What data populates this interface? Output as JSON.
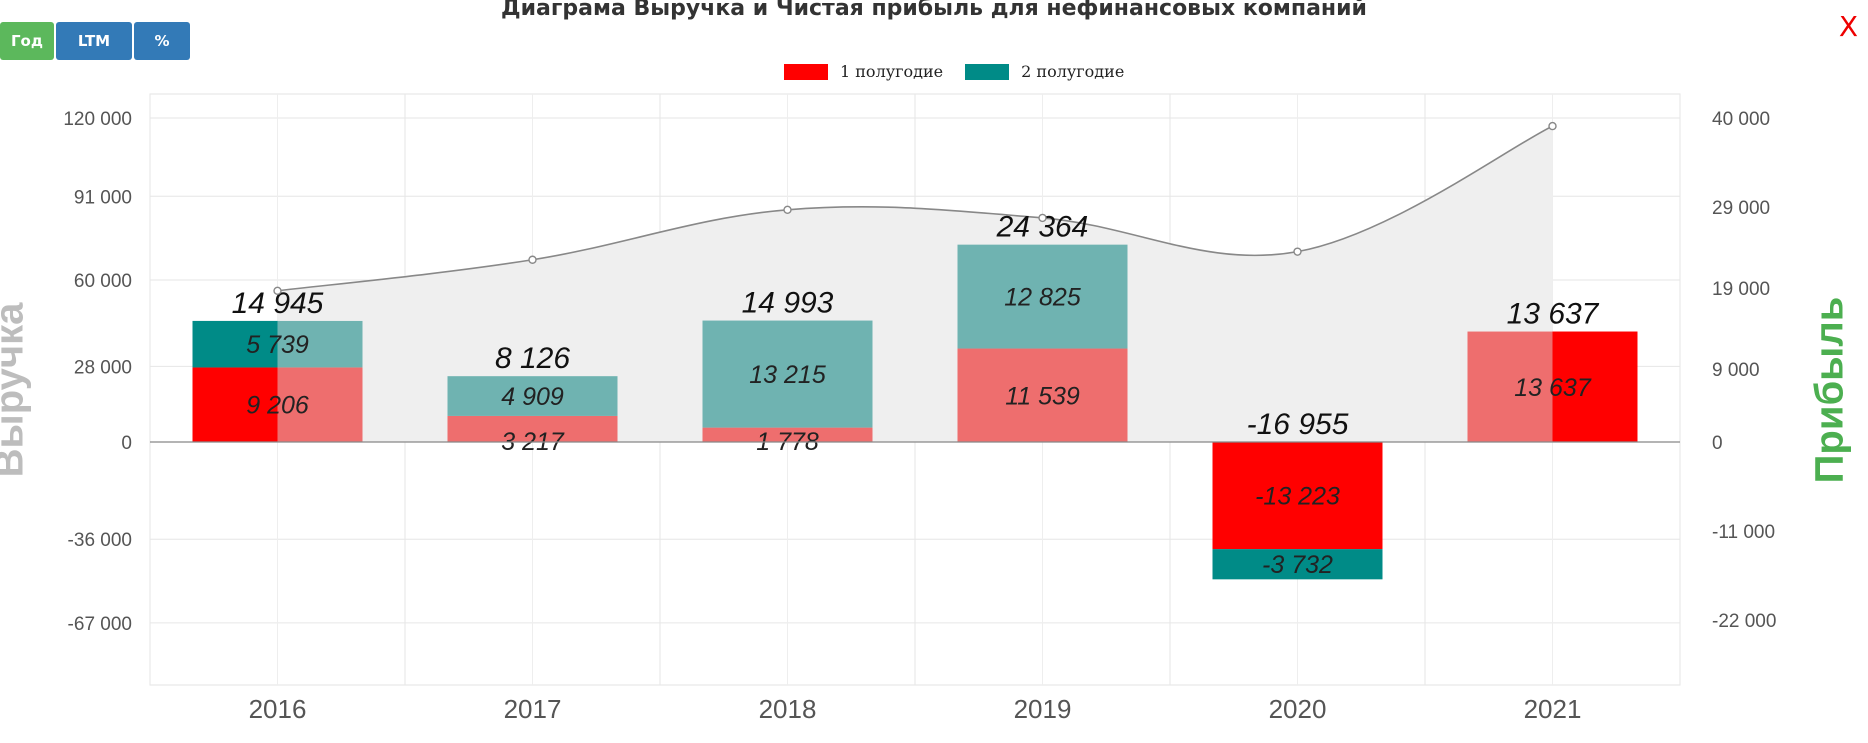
{
  "controls": {
    "year_label": "Год",
    "ltm_label": "LTM",
    "percent_label": "%",
    "close_label": "X"
  },
  "chart_data": {
    "type": "bar",
    "title": "Диаграма Выручка и Чистая прибыль для нефинансовых компаний",
    "categories": [
      "2016",
      "2017",
      "2018",
      "2019",
      "2020",
      "2021"
    ],
    "series": [
      {
        "name": "1 полугодие",
        "values": [
          9206,
          3217,
          1778,
          11539,
          -13223,
          13637
        ],
        "labels": [
          "9 206",
          "3 217",
          "1 778",
          "11 539",
          "-13 223",
          "13 637"
        ]
      },
      {
        "name": "2 полугодие",
        "values": [
          5739,
          4909,
          13215,
          12825,
          -3732,
          0
        ],
        "labels": [
          "5 739",
          "4 909",
          "13 215",
          "12 825",
          "-3 732",
          ""
        ]
      }
    ],
    "totals": [
      14945,
      8126,
      14993,
      24364,
      -16955,
      13637
    ],
    "total_labels": [
      "14 945",
      "8 126",
      "14 993",
      "24 364",
      "-16 955",
      "13 637"
    ],
    "revenue_line": {
      "values": [
        56000,
        67500,
        86000,
        83000,
        70500,
        117000
      ]
    },
    "ylabel_left": "Выручка",
    "ylabel_right": "Прибыль",
    "left_axis": {
      "min": -90000,
      "max": 130000,
      "ticks": [
        -67000,
        -36000,
        0,
        28000,
        60000,
        91000,
        120000
      ],
      "tick_labels": [
        "-67 000",
        "-36 000",
        "0",
        "28 000",
        "60 000",
        "91 000",
        "120 000"
      ]
    },
    "right_axis": {
      "min": -30000,
      "max": 43000,
      "ticks": [
        -22000,
        -11000,
        0,
        9000,
        19000,
        29000,
        40000
      ],
      "tick_labels": [
        "-22 000",
        "-11 000",
        "0",
        "9 000",
        "19 000",
        "29 000",
        "40 000"
      ]
    },
    "legend_position": "top-center",
    "grid": true,
    "colors": {
      "h1": "#ee6e6e",
      "h1_dark": "#ff0000",
      "h2": "#6fb3b1",
      "h2_dark": "#008b87",
      "area": "#efefef",
      "line": "#888888"
    }
  }
}
